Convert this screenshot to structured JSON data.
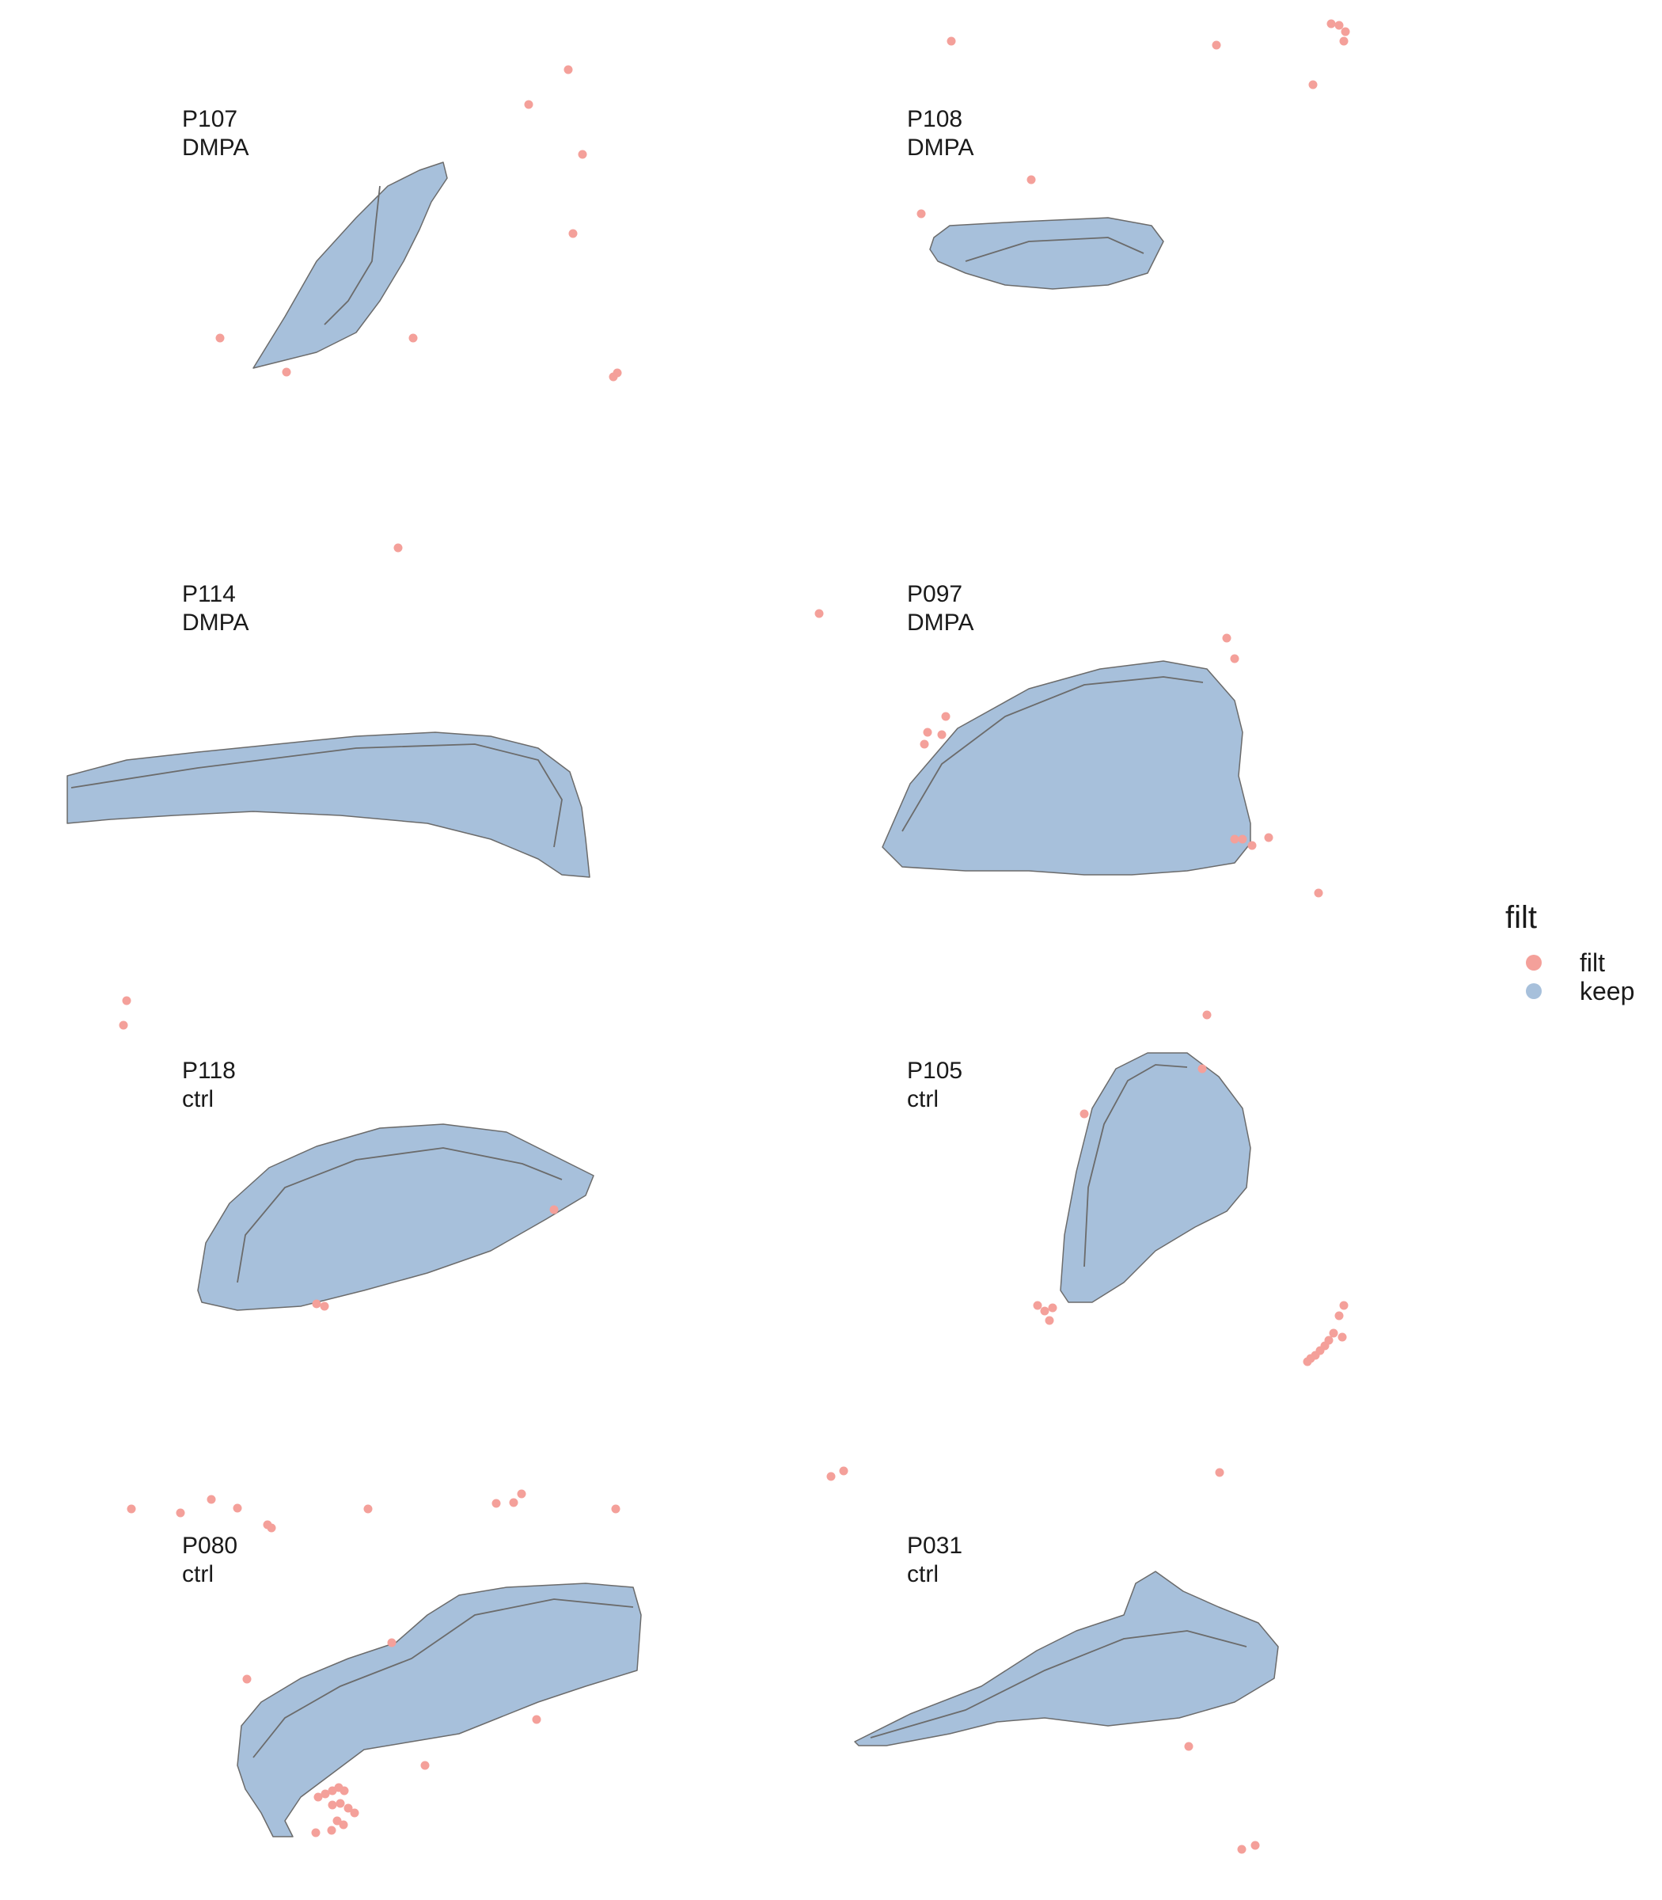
{
  "chart_data": {
    "type": "scatter",
    "title": "",
    "legend": {
      "title": "filt",
      "placement": "right",
      "entries": [
        {
          "key": "filt",
          "label": "filt",
          "color": "#F4A09A"
        },
        {
          "key": "keep",
          "label": "keep",
          "color": "#A7C0DB"
        }
      ]
    },
    "colors": {
      "filt": "#F4A09A",
      "keep": "#A7C0DB",
      "outline": "#6B6B6B"
    },
    "grid": false,
    "axes": "none",
    "layout": {
      "rows": 4,
      "cols": 2
    },
    "panels": [
      {
        "id": "P107",
        "label1": "P107",
        "label2": "DMPA",
        "tissue": [
          [
            320,
            465
          ],
          [
            360,
            400
          ],
          [
            400,
            330
          ],
          [
            450,
            275
          ],
          [
            490,
            235
          ],
          [
            530,
            215
          ],
          [
            560,
            205
          ],
          [
            565,
            225
          ],
          [
            545,
            255
          ],
          [
            530,
            290
          ],
          [
            510,
            330
          ],
          [
            480,
            380
          ],
          [
            450,
            420
          ],
          [
            400,
            445
          ],
          [
            360,
            455
          ]
        ],
        "outline": [
          [
            480,
            235
          ],
          [
            475,
            280
          ],
          [
            470,
            330
          ],
          [
            440,
            380
          ],
          [
            410,
            410
          ]
        ],
        "filt": [
          [
            718,
            88
          ],
          [
            668,
            132
          ],
          [
            736,
            195
          ],
          [
            724,
            295
          ],
          [
            278,
            427
          ],
          [
            522,
            427
          ],
          [
            362,
            470
          ],
          [
            775,
            476
          ],
          [
            780,
            471
          ]
        ]
      },
      {
        "id": "P108",
        "label1": "P108",
        "label2": "DMPA",
        "tissue": [
          [
            1180,
            300
          ],
          [
            1200,
            285
          ],
          [
            1290,
            280
          ],
          [
            1400,
            275
          ],
          [
            1455,
            285
          ],
          [
            1470,
            305
          ],
          [
            1450,
            345
          ],
          [
            1400,
            360
          ],
          [
            1330,
            365
          ],
          [
            1270,
            360
          ],
          [
            1220,
            345
          ],
          [
            1185,
            330
          ],
          [
            1175,
            315
          ]
        ],
        "outline": [
          [
            1220,
            330
          ],
          [
            1300,
            305
          ],
          [
            1400,
            300
          ],
          [
            1445,
            320
          ]
        ],
        "filt": [
          [
            1202,
            52
          ],
          [
            1537,
            57
          ],
          [
            1682,
            30
          ],
          [
            1692,
            32
          ],
          [
            1700,
            40
          ],
          [
            1698,
            52
          ],
          [
            1659,
            107
          ],
          [
            1303,
            227
          ],
          [
            1164,
            270
          ]
        ]
      },
      {
        "id": "P114",
        "label1": "P114",
        "label2": "DMPA",
        "tissue": [
          [
            85,
            980
          ],
          [
            160,
            960
          ],
          [
            250,
            950
          ],
          [
            350,
            940
          ],
          [
            450,
            930
          ],
          [
            550,
            925
          ],
          [
            620,
            930
          ],
          [
            680,
            945
          ],
          [
            720,
            975
          ],
          [
            735,
            1020
          ],
          [
            740,
            1060
          ],
          [
            745,
            1108
          ],
          [
            710,
            1105
          ],
          [
            680,
            1085
          ],
          [
            620,
            1060
          ],
          [
            540,
            1040
          ],
          [
            430,
            1030
          ],
          [
            320,
            1025
          ],
          [
            220,
            1030
          ],
          [
            140,
            1035
          ],
          [
            85,
            1040
          ]
        ],
        "outline": [
          [
            90,
            995
          ],
          [
            250,
            970
          ],
          [
            450,
            945
          ],
          [
            600,
            940
          ],
          [
            680,
            960
          ],
          [
            710,
            1010
          ],
          [
            700,
            1070
          ]
        ],
        "filt": [
          [
            503,
            692
          ],
          [
            1035,
            775
          ]
        ]
      },
      {
        "id": "P097",
        "label1": "P097",
        "label2": "DMPA",
        "tissue": [
          [
            1115,
            1070
          ],
          [
            1150,
            990
          ],
          [
            1210,
            920
          ],
          [
            1300,
            870
          ],
          [
            1390,
            845
          ],
          [
            1470,
            835
          ],
          [
            1525,
            845
          ],
          [
            1560,
            885
          ],
          [
            1570,
            925
          ],
          [
            1565,
            980
          ],
          [
            1580,
            1040
          ],
          [
            1580,
            1065
          ],
          [
            1560,
            1090
          ],
          [
            1500,
            1100
          ],
          [
            1430,
            1105
          ],
          [
            1370,
            1105
          ],
          [
            1300,
            1100
          ],
          [
            1220,
            1100
          ],
          [
            1140,
            1095
          ]
        ],
        "outline": [
          [
            1140,
            1050
          ],
          [
            1190,
            965
          ],
          [
            1270,
            905
          ],
          [
            1370,
            865
          ],
          [
            1470,
            855
          ],
          [
            1520,
            862
          ]
        ],
        "filt": [
          [
            1550,
            806
          ],
          [
            1560,
            832
          ],
          [
            1195,
            905
          ],
          [
            1172,
            925
          ],
          [
            1190,
            928
          ],
          [
            1168,
            940
          ],
          [
            1560,
            1060
          ],
          [
            1570,
            1060
          ],
          [
            1582,
            1068
          ],
          [
            1603,
            1058
          ],
          [
            1666,
            1128
          ]
        ]
      },
      {
        "id": "P118",
        "label1": "P118",
        "label2": "ctrl",
        "tissue": [
          [
            250,
            1630
          ],
          [
            260,
            1570
          ],
          [
            290,
            1520
          ],
          [
            340,
            1475
          ],
          [
            400,
            1448
          ],
          [
            480,
            1425
          ],
          [
            560,
            1420
          ],
          [
            640,
            1430
          ],
          [
            700,
            1460
          ],
          [
            750,
            1485
          ],
          [
            740,
            1510
          ],
          [
            690,
            1540
          ],
          [
            620,
            1580
          ],
          [
            540,
            1608
          ],
          [
            460,
            1630
          ],
          [
            380,
            1650
          ],
          [
            300,
            1655
          ],
          [
            255,
            1645
          ]
        ],
        "outline": [
          [
            300,
            1620
          ],
          [
            310,
            1560
          ],
          [
            360,
            1500
          ],
          [
            450,
            1465
          ],
          [
            560,
            1450
          ],
          [
            660,
            1470
          ],
          [
            710,
            1490
          ]
        ],
        "filt": [
          [
            160,
            1264
          ],
          [
            156,
            1295
          ],
          [
            400,
            1647
          ],
          [
            410,
            1650
          ],
          [
            700,
            1528
          ]
        ]
      },
      {
        "id": "P105",
        "label1": "P105",
        "label2": "ctrl",
        "tissue": [
          [
            1340,
            1630
          ],
          [
            1345,
            1560
          ],
          [
            1360,
            1480
          ],
          [
            1380,
            1400
          ],
          [
            1410,
            1350
          ],
          [
            1450,
            1330
          ],
          [
            1500,
            1330
          ],
          [
            1540,
            1360
          ],
          [
            1570,
            1400
          ],
          [
            1580,
            1450
          ],
          [
            1575,
            1500
          ],
          [
            1550,
            1530
          ],
          [
            1510,
            1550
          ],
          [
            1460,
            1580
          ],
          [
            1420,
            1620
          ],
          [
            1380,
            1645
          ],
          [
            1350,
            1645
          ]
        ],
        "outline": [
          [
            1370,
            1600
          ],
          [
            1375,
            1500
          ],
          [
            1395,
            1420
          ],
          [
            1425,
            1365
          ],
          [
            1460,
            1345
          ],
          [
            1500,
            1348
          ]
        ],
        "filt": [
          [
            1525,
            1282
          ],
          [
            1519,
            1350
          ],
          [
            1370,
            1407
          ],
          [
            1311,
            1649
          ],
          [
            1320,
            1656
          ],
          [
            1330,
            1652
          ],
          [
            1326,
            1668
          ],
          [
            1698,
            1649
          ],
          [
            1692,
            1662
          ],
          [
            1685,
            1684
          ],
          [
            1696,
            1689
          ],
          [
            1679,
            1693
          ],
          [
            1674,
            1700
          ],
          [
            1668,
            1706
          ],
          [
            1662,
            1712
          ],
          [
            1656,
            1716
          ],
          [
            1652,
            1720
          ]
        ]
      },
      {
        "id": "P080",
        "label1": "P080",
        "label2": "ctrl",
        "tissue": [
          [
            300,
            2230
          ],
          [
            305,
            2180
          ],
          [
            330,
            2150
          ],
          [
            380,
            2120
          ],
          [
            440,
            2095
          ],
          [
            500,
            2075
          ],
          [
            540,
            2040
          ],
          [
            580,
            2015
          ],
          [
            640,
            2005
          ],
          [
            740,
            2000
          ],
          [
            800,
            2005
          ],
          [
            810,
            2040
          ],
          [
            805,
            2110
          ],
          [
            740,
            2130
          ],
          [
            680,
            2150
          ],
          [
            630,
            2170
          ],
          [
            580,
            2190
          ],
          [
            520,
            2200
          ],
          [
            460,
            2210
          ],
          [
            420,
            2240
          ],
          [
            380,
            2270
          ],
          [
            360,
            2300
          ],
          [
            370,
            2320
          ],
          [
            345,
            2320
          ],
          [
            330,
            2290
          ],
          [
            310,
            2260
          ]
        ],
        "outline": [
          [
            320,
            2220
          ],
          [
            360,
            2170
          ],
          [
            430,
            2130
          ],
          [
            520,
            2095
          ],
          [
            600,
            2040
          ],
          [
            700,
            2020
          ],
          [
            800,
            2030
          ]
        ],
        "filt": [
          [
            166,
            1906
          ],
          [
            228,
            1911
          ],
          [
            267,
            1894
          ],
          [
            300,
            1905
          ],
          [
            338,
            1926
          ],
          [
            343,
            1930
          ],
          [
            465,
            1906
          ],
          [
            627,
            1899
          ],
          [
            649,
            1898
          ],
          [
            659,
            1887
          ],
          [
            778,
            1906
          ],
          [
            1050,
            1865
          ],
          [
            1066,
            1858
          ],
          [
            495,
            2075
          ],
          [
            312,
            2121
          ],
          [
            678,
            2172
          ],
          [
            537,
            2230
          ],
          [
            402,
            2270
          ],
          [
            411,
            2266
          ],
          [
            420,
            2262
          ],
          [
            428,
            2258
          ],
          [
            435,
            2262
          ],
          [
            420,
            2280
          ],
          [
            430,
            2278
          ],
          [
            440,
            2284
          ],
          [
            448,
            2290
          ],
          [
            426,
            2300
          ],
          [
            434,
            2305
          ],
          [
            419,
            2312
          ],
          [
            399,
            2315
          ]
        ]
      },
      {
        "id": "P031",
        "label1": "P031",
        "label2": "ctrl",
        "tissue": [
          [
            1080,
            2200
          ],
          [
            1150,
            2165
          ],
          [
            1240,
            2130
          ],
          [
            1310,
            2085
          ],
          [
            1360,
            2060
          ],
          [
            1420,
            2040
          ],
          [
            1435,
            2000
          ],
          [
            1460,
            1985
          ],
          [
            1495,
            2010
          ],
          [
            1540,
            2030
          ],
          [
            1590,
            2050
          ],
          [
            1615,
            2080
          ],
          [
            1610,
            2120
          ],
          [
            1560,
            2150
          ],
          [
            1490,
            2170
          ],
          [
            1400,
            2180
          ],
          [
            1320,
            2170
          ],
          [
            1260,
            2175
          ],
          [
            1200,
            2190
          ],
          [
            1120,
            2205
          ],
          [
            1085,
            2205
          ]
        ],
        "outline": [
          [
            1100,
            2195
          ],
          [
            1220,
            2160
          ],
          [
            1320,
            2110
          ],
          [
            1420,
            2070
          ],
          [
            1500,
            2060
          ],
          [
            1575,
            2080
          ]
        ],
        "filt": [
          [
            1541,
            1860
          ],
          [
            1502,
            2206
          ],
          [
            1569,
            2336
          ],
          [
            1586,
            2331
          ]
        ]
      }
    ]
  }
}
